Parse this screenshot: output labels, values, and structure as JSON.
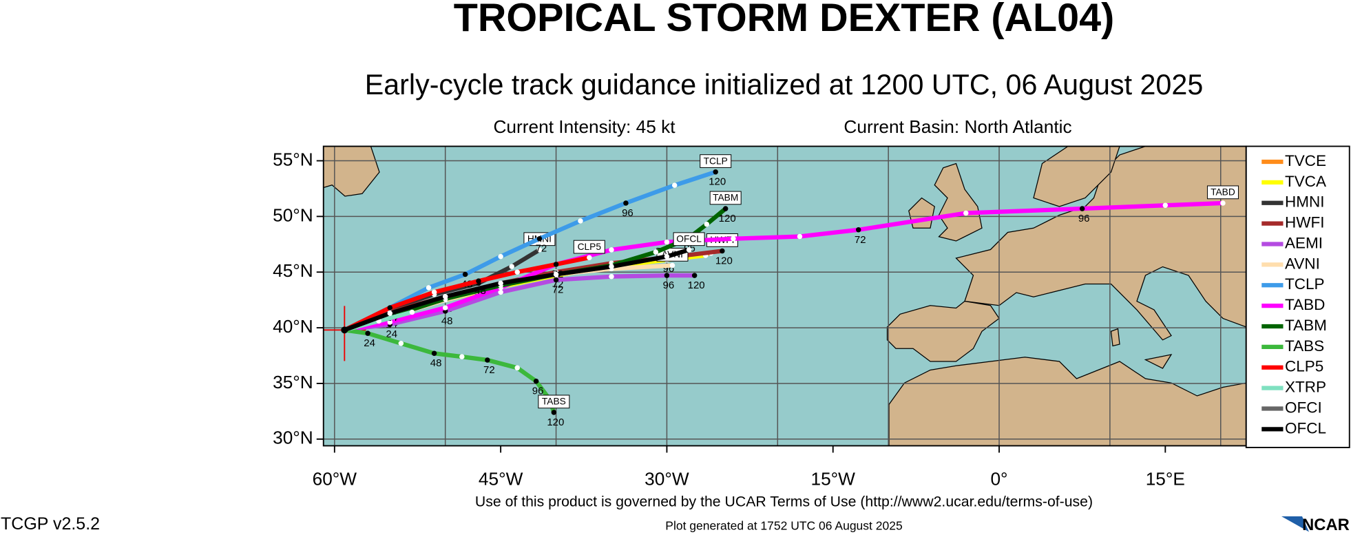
{
  "chart_data": {
    "type": "track",
    "title": "TROPICAL STORM DEXTER (AL04)",
    "subtitle": "Early-cycle track guidance initialized at 1200 UTC, 06 August 2025",
    "intensity": "Current Intensity: 45 kt",
    "basin": "Current Basin: North Atlantic",
    "footer_terms": "Use of this product is governed by the UCAR Terms of Use (http://www2.ucar.edu/terms-of-use)",
    "footer_generated": "Plot generated at 1752 UTC   06 August 2025",
    "version": "TCGP v2.5.2",
    "logo": "NCAR",
    "xlim": [
      -61,
      22.3
    ],
    "ylim": [
      29.4,
      56.3
    ],
    "xticks": [
      {
        "value": -60,
        "label": "60°W"
      },
      {
        "value": -45,
        "label": "45°W"
      },
      {
        "value": -30,
        "label": "30°W"
      },
      {
        "value": -15,
        "label": "15°W"
      },
      {
        "value": 0,
        "label": "0°"
      },
      {
        "value": 15,
        "label": "15°E"
      }
    ],
    "yticks": [
      {
        "value": 55,
        "label": "55°N"
      },
      {
        "value": 50,
        "label": "50°N"
      },
      {
        "value": 45,
        "label": "45°N"
      },
      {
        "value": 40,
        "label": "40°N"
      },
      {
        "value": 35,
        "label": "35°N"
      },
      {
        "value": 30,
        "label": "30°N"
      }
    ],
    "xgrid": [
      -60,
      -50,
      -40,
      -30,
      -20,
      -10,
      0,
      10,
      20
    ],
    "grid": true,
    "series": [
      {
        "name": "TVCE",
        "color": "#ff8c1a",
        "lon": [
          -59.1,
          -55,
          -50,
          -45,
          -40,
          -35,
          -30,
          -26
        ],
        "lat": [
          39.8,
          41.2,
          42.6,
          43.8,
          44.8,
          45.6,
          46.2,
          46.7
        ],
        "hours": [
          null,
          24,
          48,
          null,
          72,
          null,
          96,
          null
        ],
        "boxed": false
      },
      {
        "name": "TVCA",
        "color": "#ffff00",
        "lon": [
          -59.1,
          -55,
          -50,
          -45,
          -40,
          -35,
          -30,
          -26.5
        ],
        "lat": [
          39.8,
          41.1,
          42.5,
          43.7,
          44.7,
          45.5,
          46.1,
          46.5
        ],
        "hours": [
          null,
          null,
          null,
          null,
          null,
          null,
          null,
          null
        ],
        "boxed": false
      },
      {
        "name": "HMNI",
        "color": "#333333",
        "lon": [
          -59.1,
          -55,
          -51,
          -47,
          -44,
          -41.5
        ],
        "lat": [
          39.8,
          41.7,
          43,
          44,
          45.5,
          47
        ],
        "hours": [
          null,
          24,
          null,
          48,
          null,
          null
        ],
        "boxed": true
      },
      {
        "name": "HWFI",
        "color": "#a52a2a",
        "lon": [
          -59.1,
          -55,
          -50,
          -45,
          -40,
          -35,
          -30,
          -25
        ],
        "lat": [
          39.8,
          41.4,
          42.8,
          44,
          45,
          45.8,
          46.3,
          46.9
        ],
        "hours": [
          null,
          null,
          null,
          null,
          null,
          null,
          null,
          120
        ],
        "boxed": true
      },
      {
        "name": "AEMI",
        "color": "#b44be1",
        "lon": [
          -59.1,
          -55,
          -50,
          -45,
          -40,
          -35,
          -30,
          -27.5
        ],
        "lat": [
          39.8,
          40.3,
          41.5,
          43.2,
          44.3,
          44.6,
          44.7,
          44.7
        ],
        "hours": [
          null,
          24,
          48,
          null,
          72,
          null,
          96,
          120
        ],
        "boxed": false
      },
      {
        "name": "AVNI",
        "color": "#ffdead",
        "lon": [
          -59.1,
          -55,
          -50,
          -45,
          -40,
          -35,
          -29.5
        ],
        "lat": [
          39.8,
          41,
          42.5,
          43.8,
          44.8,
          45.3,
          45.6
        ],
        "hours": [
          null,
          null,
          null,
          null,
          null,
          null,
          null
        ],
        "boxed": true
      },
      {
        "name": "TCLP",
        "color": "#3d9be9",
        "lon": [
          -59.1,
          -55,
          -51.5,
          -48.2,
          -45,
          -41.5,
          -37.8,
          -33.7,
          -29.3,
          -25.6
        ],
        "lat": [
          39.8,
          41.8,
          43.6,
          44.8,
          46.4,
          48,
          49.6,
          51.2,
          52.8,
          54
        ],
        "hours": [
          null,
          null,
          null,
          48,
          null,
          72,
          null,
          96,
          null,
          120
        ],
        "boxed": true
      },
      {
        "name": "TABD",
        "color": "#ff00ff",
        "lon": [
          -59.1,
          -55,
          -50,
          -45,
          -40,
          -35,
          -30,
          -24,
          -18,
          -12.7,
          -3,
          7.5,
          15,
          20.2
        ],
        "lat": [
          39.8,
          40.5,
          41.8,
          43.6,
          45.7,
          47,
          47.7,
          48,
          48.2,
          48.8,
          50.3,
          50.7,
          51,
          51.2
        ],
        "hours": [
          null,
          null,
          null,
          null,
          null,
          null,
          null,
          null,
          null,
          72,
          null,
          96,
          null,
          null
        ],
        "boxed": true
      },
      {
        "name": "TABM",
        "color": "#006400",
        "lon": [
          -59.1,
          -55,
          -50,
          -45,
          -40,
          -35,
          -31,
          -28.1,
          -26.4,
          -24.7
        ],
        "lat": [
          39.8,
          41,
          42.6,
          43.8,
          44.8,
          45.6,
          46.8,
          48,
          49.3,
          50.7
        ],
        "hours": [
          null,
          null,
          null,
          null,
          null,
          null,
          null,
          96,
          null,
          120
        ],
        "boxed": true
      },
      {
        "name": "TABS",
        "color": "#3cb83c",
        "lon": [
          -59.1,
          -57,
          -54,
          -51,
          -48.5,
          -46.2,
          -43.5,
          -41.8,
          -40.6,
          -40.2
        ],
        "lat": [
          39.8,
          39.5,
          38.6,
          37.7,
          37.4,
          37.1,
          36.4,
          35.2,
          33.6,
          32.4
        ],
        "hours": [
          null,
          24,
          null,
          48,
          null,
          72,
          null,
          96,
          null,
          120
        ],
        "boxed": true
      },
      {
        "name": "CLP5",
        "color": "#ff0000",
        "lon": [
          -59.1,
          -55,
          -51,
          -47,
          -43.5,
          -40,
          -37
        ],
        "lat": [
          39.8,
          41.8,
          43.2,
          44.2,
          45,
          45.7,
          46.3
        ],
        "hours": [
          null,
          24,
          null,
          48,
          null,
          72,
          null
        ],
        "boxed": true
      },
      {
        "name": "XTRP",
        "color": "#7fe0c0",
        "lon": [
          -59.1,
          -56,
          -53
        ],
        "lat": [
          39.8,
          40.6,
          41.4
        ],
        "hours": [
          null,
          null,
          null
        ],
        "boxed": false
      },
      {
        "name": "OFCI",
        "color": "#666666",
        "lon": [
          -59.1,
          -55,
          -50,
          -45,
          -40,
          -35,
          -30,
          -28
        ],
        "lat": [
          39.8,
          41.3,
          42.8,
          44,
          44.8,
          45.5,
          46.4,
          47
        ],
        "hours": [
          null,
          null,
          null,
          null,
          null,
          null,
          null,
          null
        ],
        "boxed": false
      },
      {
        "name": "OFCL",
        "color": "#000000",
        "lon": [
          -59.1,
          -55,
          -50,
          -45,
          -40,
          -35,
          -30,
          -28
        ],
        "lat": [
          39.8,
          41.3,
          42.8,
          44,
          44.8,
          45.5,
          46.4,
          47
        ],
        "hours": [
          null,
          null,
          null,
          null,
          null,
          null,
          null,
          null
        ],
        "boxed": true
      }
    ]
  }
}
